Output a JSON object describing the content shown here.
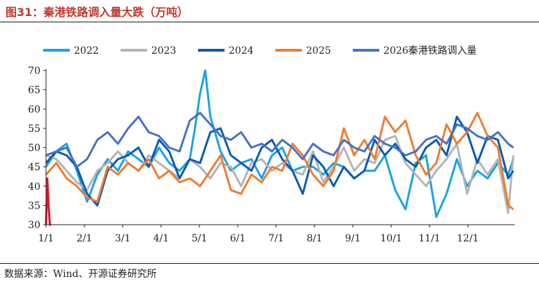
{
  "figure": {
    "title": "图31：秦港铁路调入量大跌（万吨）",
    "source": "数据来源：Wind、开源证券研究所"
  },
  "chart_data": {
    "type": "line",
    "title": "",
    "xlabel": "",
    "ylabel": "",
    "x_ticks": [
      "1/1",
      "2/1",
      "3/1",
      "4/1",
      "5/1",
      "6/1",
      "7/1",
      "8/1",
      "9/1",
      "10/1",
      "11/1",
      "12/1"
    ],
    "y_ticks": [
      30,
      35,
      40,
      45,
      50,
      55,
      60,
      65,
      70
    ],
    "ylim": [
      30,
      70
    ],
    "x_unit": "day of year",
    "xlim": [
      1,
      366
    ],
    "grid": false,
    "legend_position": "top",
    "series": [
      {
        "name": "2022",
        "color": "#1aa3e0",
        "x": [
          1,
          9,
          17,
          25,
          33,
          41,
          49,
          57,
          65,
          73,
          81,
          89,
          97,
          105,
          113,
          117,
          121,
          125,
          129,
          137,
          145,
          153,
          161,
          169,
          177,
          185,
          193,
          201,
          209,
          217,
          225,
          233,
          241,
          249,
          257,
          265,
          273,
          281,
          289,
          297,
          305,
          313,
          321,
          329,
          337,
          345,
          353,
          361,
          365
        ],
        "y": [
          45,
          49,
          51,
          44,
          36,
          43,
          47,
          44,
          49,
          47,
          45,
          50,
          46,
          44,
          47,
          55,
          64,
          70,
          58,
          49,
          44,
          46,
          47,
          42,
          48,
          50,
          44,
          45,
          45,
          43,
          46,
          45,
          42,
          44,
          44,
          48,
          39,
          34,
          46,
          48,
          32,
          38,
          47,
          40,
          44,
          42,
          46,
          43,
          47
        ]
      },
      {
        "name": "2023",
        "color": "#b4b4b4",
        "x": [
          1,
          9,
          17,
          25,
          33,
          41,
          49,
          57,
          65,
          73,
          81,
          89,
          97,
          105,
          113,
          121,
          129,
          137,
          145,
          153,
          161,
          169,
          177,
          185,
          193,
          201,
          209,
          217,
          225,
          233,
          241,
          249,
          257,
          265,
          273,
          281,
          289,
          297,
          305,
          313,
          321,
          329,
          337,
          345,
          353,
          361,
          365
        ],
        "y": [
          48,
          47,
          44,
          41,
          39,
          44,
          46,
          49,
          46,
          44,
          48,
          46,
          44,
          42,
          47,
          45,
          42,
          46,
          45,
          40,
          46,
          47,
          44,
          46,
          44,
          43,
          49,
          41,
          45,
          50,
          44,
          47,
          46,
          52,
          53,
          46,
          43,
          40,
          44,
          47,
          51,
          38,
          47,
          43,
          47,
          33,
          48
        ]
      },
      {
        "name": "2024",
        "color": "#0a5ab4",
        "x": [
          1,
          9,
          17,
          25,
          33,
          41,
          49,
          57,
          65,
          73,
          81,
          89,
          97,
          105,
          113,
          121,
          129,
          137,
          145,
          153,
          161,
          169,
          177,
          185,
          193,
          201,
          209,
          217,
          225,
          233,
          241,
          249,
          257,
          265,
          273,
          281,
          289,
          297,
          305,
          313,
          321,
          329,
          337,
          345,
          353,
          361,
          365
        ],
        "y": [
          46,
          49,
          48,
          45,
          38,
          35,
          44,
          47,
          48,
          50,
          45,
          52,
          49,
          42,
          47,
          46,
          54,
          55,
          48,
          46,
          44,
          50,
          52,
          47,
          44,
          38,
          48,
          45,
          40,
          45,
          42,
          44,
          52,
          48,
          51,
          47,
          45,
          50,
          52,
          48,
          58,
          54,
          46,
          53,
          52,
          42,
          44
        ]
      },
      {
        "name": "2025",
        "color": "#ed7d31",
        "x": [
          1,
          9,
          17,
          25,
          33,
          41,
          49,
          57,
          65,
          73,
          81,
          89,
          97,
          105,
          113,
          121,
          129,
          137,
          145,
          153,
          161,
          169,
          177,
          185,
          193,
          201,
          209,
          217,
          225,
          233,
          241,
          249,
          257,
          265,
          273,
          281,
          289,
          297,
          305,
          313,
          321,
          329,
          337,
          345,
          353,
          361,
          365
        ],
        "y": [
          43,
          46,
          42,
          40,
          37,
          36,
          45,
          43,
          46,
          44,
          47,
          42,
          44,
          41,
          42,
          40,
          44,
          48,
          39,
          38,
          43,
          41,
          45,
          44,
          51,
          48,
          43,
          40,
          44,
          55,
          48,
          52,
          47,
          58,
          54,
          57,
          48,
          43,
          46,
          56,
          51,
          54,
          59,
          53,
          50,
          35,
          34
        ]
      },
      {
        "name": "2026秦港铁路调入量",
        "color": "#4472c4",
        "x": [
          1,
          9,
          17,
          25,
          33,
          41,
          49,
          57,
          65,
          73,
          81,
          89,
          97,
          105,
          113,
          121,
          129,
          137,
          145,
          153,
          161,
          169,
          177,
          185,
          193,
          201,
          209,
          217,
          225,
          233,
          241,
          249,
          257,
          265,
          273,
          281,
          289,
          297,
          305,
          313,
          321,
          329,
          337,
          345,
          353,
          361,
          365
        ],
        "y": [
          48,
          49,
          50,
          45,
          47,
          52,
          54,
          51,
          55,
          58,
          54,
          53,
          50,
          49,
          57,
          59,
          56,
          53,
          52,
          54,
          50,
          51,
          49,
          52,
          50,
          47,
          51,
          49,
          48,
          52,
          50,
          49,
          53,
          51,
          50,
          48,
          49,
          52,
          53,
          51,
          56,
          55,
          53,
          52,
          54,
          51,
          50
        ]
      },
      {
        "name": "",
        "color": "#e0141e",
        "x": [
          1,
          2,
          3,
          4,
          5
        ],
        "y": [
          30,
          42,
          35,
          30,
          30
        ]
      }
    ]
  }
}
